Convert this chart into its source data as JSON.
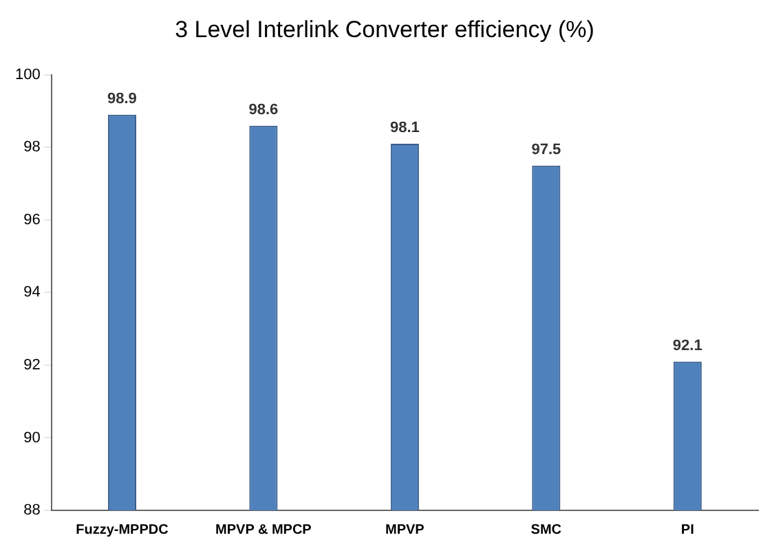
{
  "chart_data": {
    "type": "bar",
    "title": "3 Level Interlink Converter efficiency (%)",
    "categories": [
      "Fuzzy-MPPDC",
      "MPVP & MPCP",
      "MPVP",
      "SMC",
      "PI"
    ],
    "values": [
      98.9,
      98.6,
      98.1,
      97.5,
      92.1
    ],
    "color": "#4f81bd",
    "ylim": [
      88,
      100
    ],
    "yticks": [
      88,
      90,
      92,
      94,
      96,
      98,
      100
    ],
    "grid": false,
    "legend": false,
    "data_labels": true
  }
}
